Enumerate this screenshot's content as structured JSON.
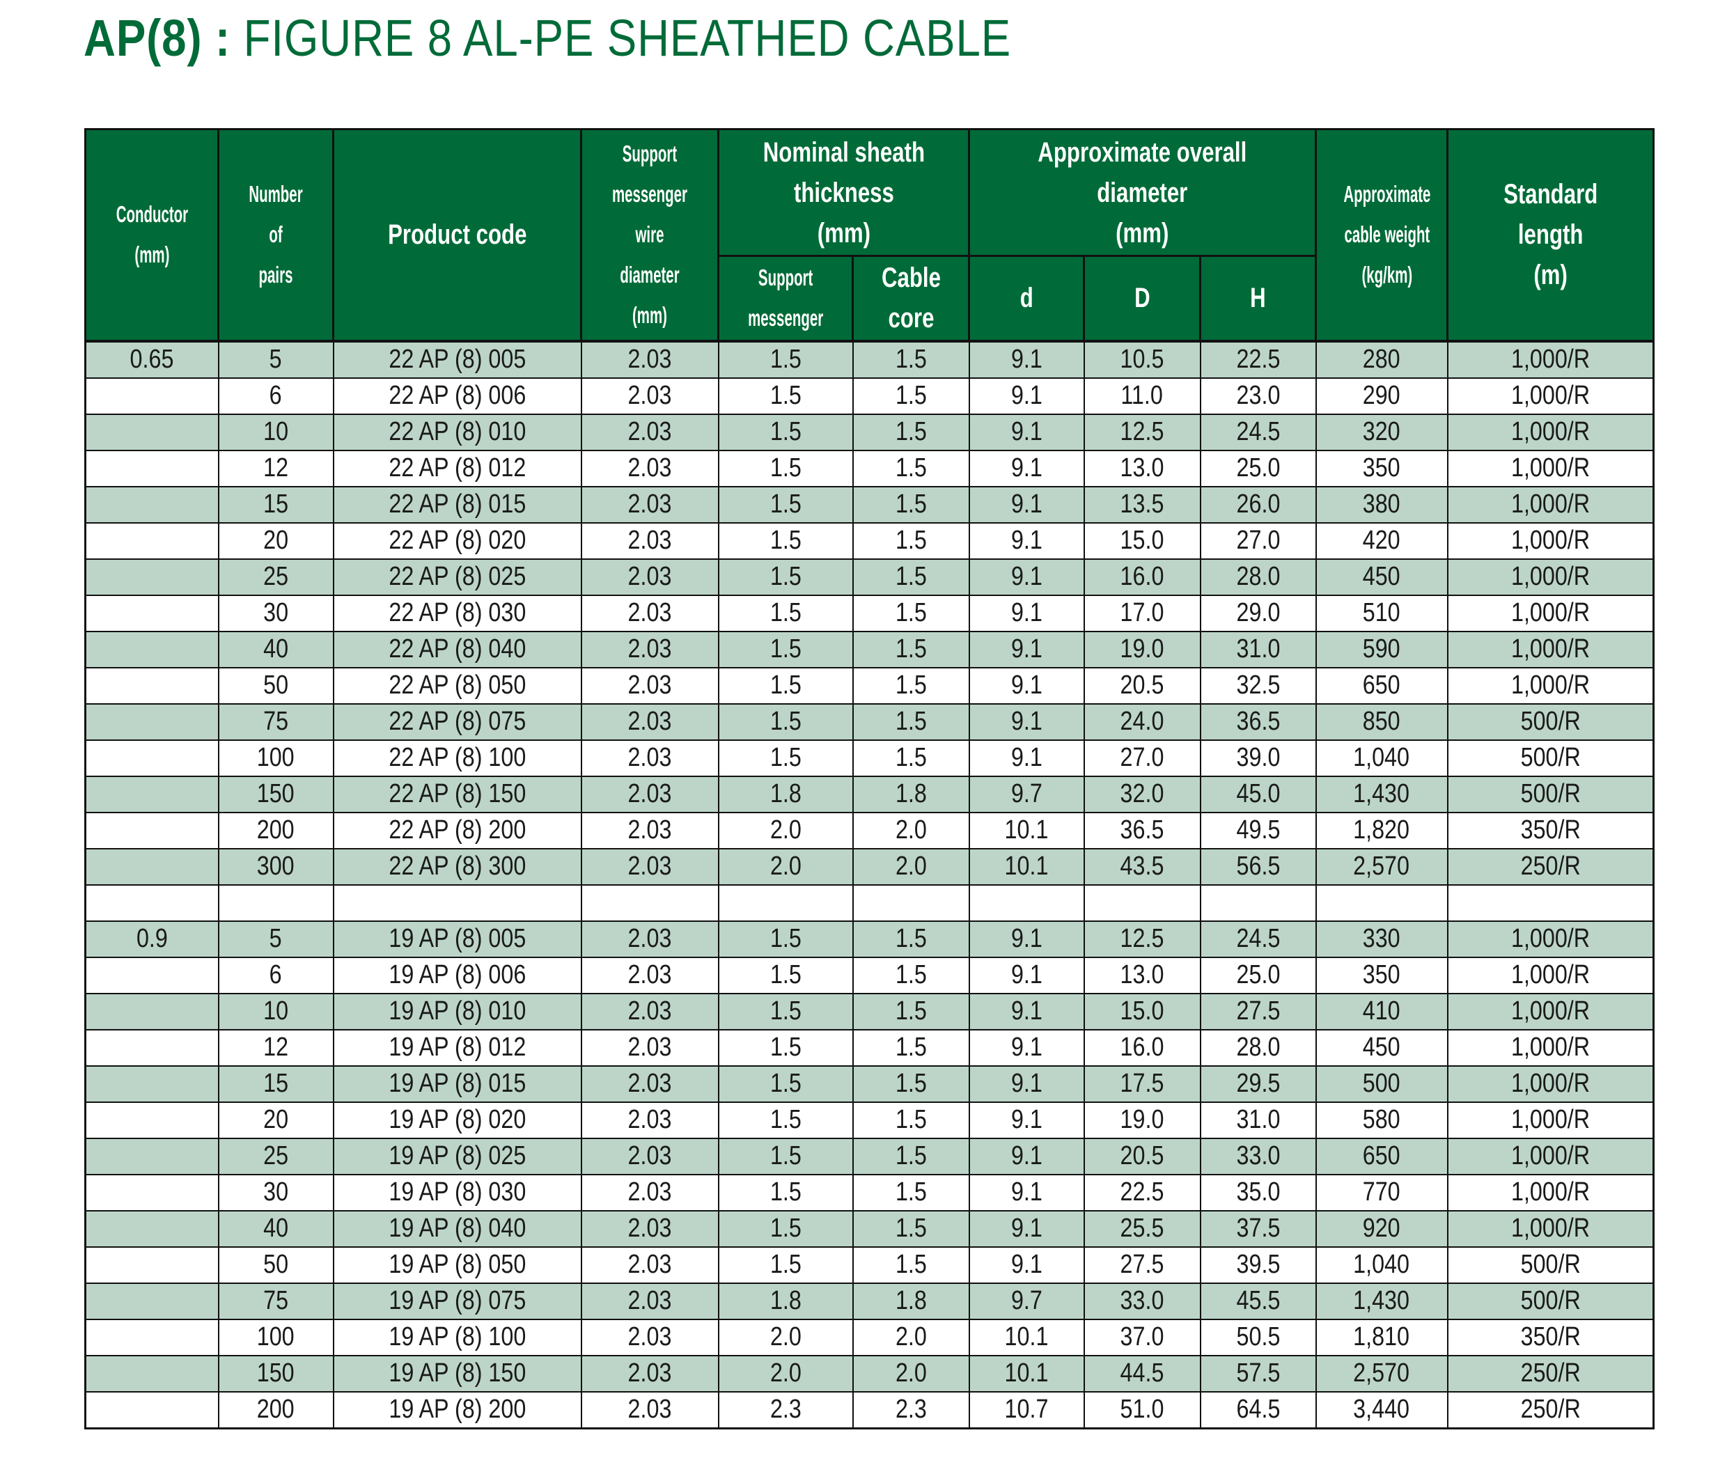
{
  "title": {
    "bold": "AP(8) :",
    "rest": " FIGURE 8 AL-PE SHEATHED CABLE"
  },
  "colors": {
    "header": "#006b38",
    "shaded_row": "#bcd5c8",
    "title": "#006b38"
  },
  "headers": {
    "conductor": [
      "Conductor",
      "(mm)"
    ],
    "pairs": [
      "Number of",
      "pairs"
    ],
    "product_code": "Product code",
    "messenger_wire": [
      "Support",
      "messenger",
      "wire diameter",
      "(mm)"
    ],
    "sheath": [
      "Nominal sheath",
      "thickness",
      "(mm)"
    ],
    "sheath_support": [
      "Support",
      "messenger"
    ],
    "sheath_core": [
      "Cable",
      "core"
    ],
    "diameter": [
      "Approximate overall",
      "diameter",
      "(mm)"
    ],
    "d": "d",
    "D": "D",
    "H": "H",
    "weight": [
      "Approximate",
      "cable weight",
      "(kg/km)"
    ],
    "length": [
      "Standard",
      "length",
      "(m)"
    ]
  },
  "groups": [
    {
      "conductor": "0.65",
      "rows": [
        [
          "5",
          "22 AP (8) 005",
          "2.03",
          "1.5",
          "1.5",
          "9.1",
          "10.5",
          "22.5",
          "280",
          "1,000/R"
        ],
        [
          "6",
          "22 AP (8) 006",
          "2.03",
          "1.5",
          "1.5",
          "9.1",
          "11.0",
          "23.0",
          "290",
          "1,000/R"
        ],
        [
          "10",
          "22 AP (8) 010",
          "2.03",
          "1.5",
          "1.5",
          "9.1",
          "12.5",
          "24.5",
          "320",
          "1,000/R"
        ],
        [
          "12",
          "22 AP (8) 012",
          "2.03",
          "1.5",
          "1.5",
          "9.1",
          "13.0",
          "25.0",
          "350",
          "1,000/R"
        ],
        [
          "15",
          "22 AP (8) 015",
          "2.03",
          "1.5",
          "1.5",
          "9.1",
          "13.5",
          "26.0",
          "380",
          "1,000/R"
        ],
        [
          "20",
          "22 AP (8) 020",
          "2.03",
          "1.5",
          "1.5",
          "9.1",
          "15.0",
          "27.0",
          "420",
          "1,000/R"
        ],
        [
          "25",
          "22 AP (8) 025",
          "2.03",
          "1.5",
          "1.5",
          "9.1",
          "16.0",
          "28.0",
          "450",
          "1,000/R"
        ],
        [
          "30",
          "22 AP (8) 030",
          "2.03",
          "1.5",
          "1.5",
          "9.1",
          "17.0",
          "29.0",
          "510",
          "1,000/R"
        ],
        [
          "40",
          "22 AP (8) 040",
          "2.03",
          "1.5",
          "1.5",
          "9.1",
          "19.0",
          "31.0",
          "590",
          "1,000/R"
        ],
        [
          "50",
          "22 AP (8) 050",
          "2.03",
          "1.5",
          "1.5",
          "9.1",
          "20.5",
          "32.5",
          "650",
          "1,000/R"
        ],
        [
          "75",
          "22 AP (8) 075",
          "2.03",
          "1.5",
          "1.5",
          "9.1",
          "24.0",
          "36.5",
          "850",
          "500/R"
        ],
        [
          "100",
          "22 AP (8) 100",
          "2.03",
          "1.5",
          "1.5",
          "9.1",
          "27.0",
          "39.0",
          "1,040",
          "500/R"
        ],
        [
          "150",
          "22 AP (8) 150",
          "2.03",
          "1.8",
          "1.8",
          "9.7",
          "32.0",
          "45.0",
          "1,430",
          "500/R"
        ],
        [
          "200",
          "22 AP (8) 200",
          "2.03",
          "2.0",
          "2.0",
          "10.1",
          "36.5",
          "49.5",
          "1,820",
          "350/R"
        ],
        [
          "300",
          "22 AP (8) 300",
          "2.03",
          "2.0",
          "2.0",
          "10.1",
          "43.5",
          "56.5",
          "2,570",
          "250/R"
        ]
      ]
    },
    {
      "conductor": "0.9",
      "rows": [
        [
          "5",
          "19 AP (8) 005",
          "2.03",
          "1.5",
          "1.5",
          "9.1",
          "12.5",
          "24.5",
          "330",
          "1,000/R"
        ],
        [
          "6",
          "19 AP (8) 006",
          "2.03",
          "1.5",
          "1.5",
          "9.1",
          "13.0",
          "25.0",
          "350",
          "1,000/R"
        ],
        [
          "10",
          "19 AP (8) 010",
          "2.03",
          "1.5",
          "1.5",
          "9.1",
          "15.0",
          "27.5",
          "410",
          "1,000/R"
        ],
        [
          "12",
          "19 AP (8) 012",
          "2.03",
          "1.5",
          "1.5",
          "9.1",
          "16.0",
          "28.0",
          "450",
          "1,000/R"
        ],
        [
          "15",
          "19 AP (8) 015",
          "2.03",
          "1.5",
          "1.5",
          "9.1",
          "17.5",
          "29.5",
          "500",
          "1,000/R"
        ],
        [
          "20",
          "19 AP (8) 020",
          "2.03",
          "1.5",
          "1.5",
          "9.1",
          "19.0",
          "31.0",
          "580",
          "1,000/R"
        ],
        [
          "25",
          "19 AP (8) 025",
          "2.03",
          "1.5",
          "1.5",
          "9.1",
          "20.5",
          "33.0",
          "650",
          "1,000/R"
        ],
        [
          "30",
          "19 AP (8) 030",
          "2.03",
          "1.5",
          "1.5",
          "9.1",
          "22.5",
          "35.0",
          "770",
          "1,000/R"
        ],
        [
          "40",
          "19 AP (8) 040",
          "2.03",
          "1.5",
          "1.5",
          "9.1",
          "25.5",
          "37.5",
          "920",
          "1,000/R"
        ],
        [
          "50",
          "19 AP (8) 050",
          "2.03",
          "1.5",
          "1.5",
          "9.1",
          "27.5",
          "39.5",
          "1,040",
          "500/R"
        ],
        [
          "75",
          "19 AP (8) 075",
          "2.03",
          "1.8",
          "1.8",
          "9.7",
          "33.0",
          "45.5",
          "1,430",
          "500/R"
        ],
        [
          "100",
          "19 AP (8) 100",
          "2.03",
          "2.0",
          "2.0",
          "10.1",
          "37.0",
          "50.5",
          "1,810",
          "350/R"
        ],
        [
          "150",
          "19 AP (8) 150",
          "2.03",
          "2.0",
          "2.0",
          "10.1",
          "44.5",
          "57.5",
          "2,570",
          "250/R"
        ],
        [
          "200",
          "19 AP (8) 200",
          "2.03",
          "2.3",
          "2.3",
          "10.7",
          "51.0",
          "64.5",
          "3,440",
          "250/R"
        ]
      ]
    }
  ]
}
